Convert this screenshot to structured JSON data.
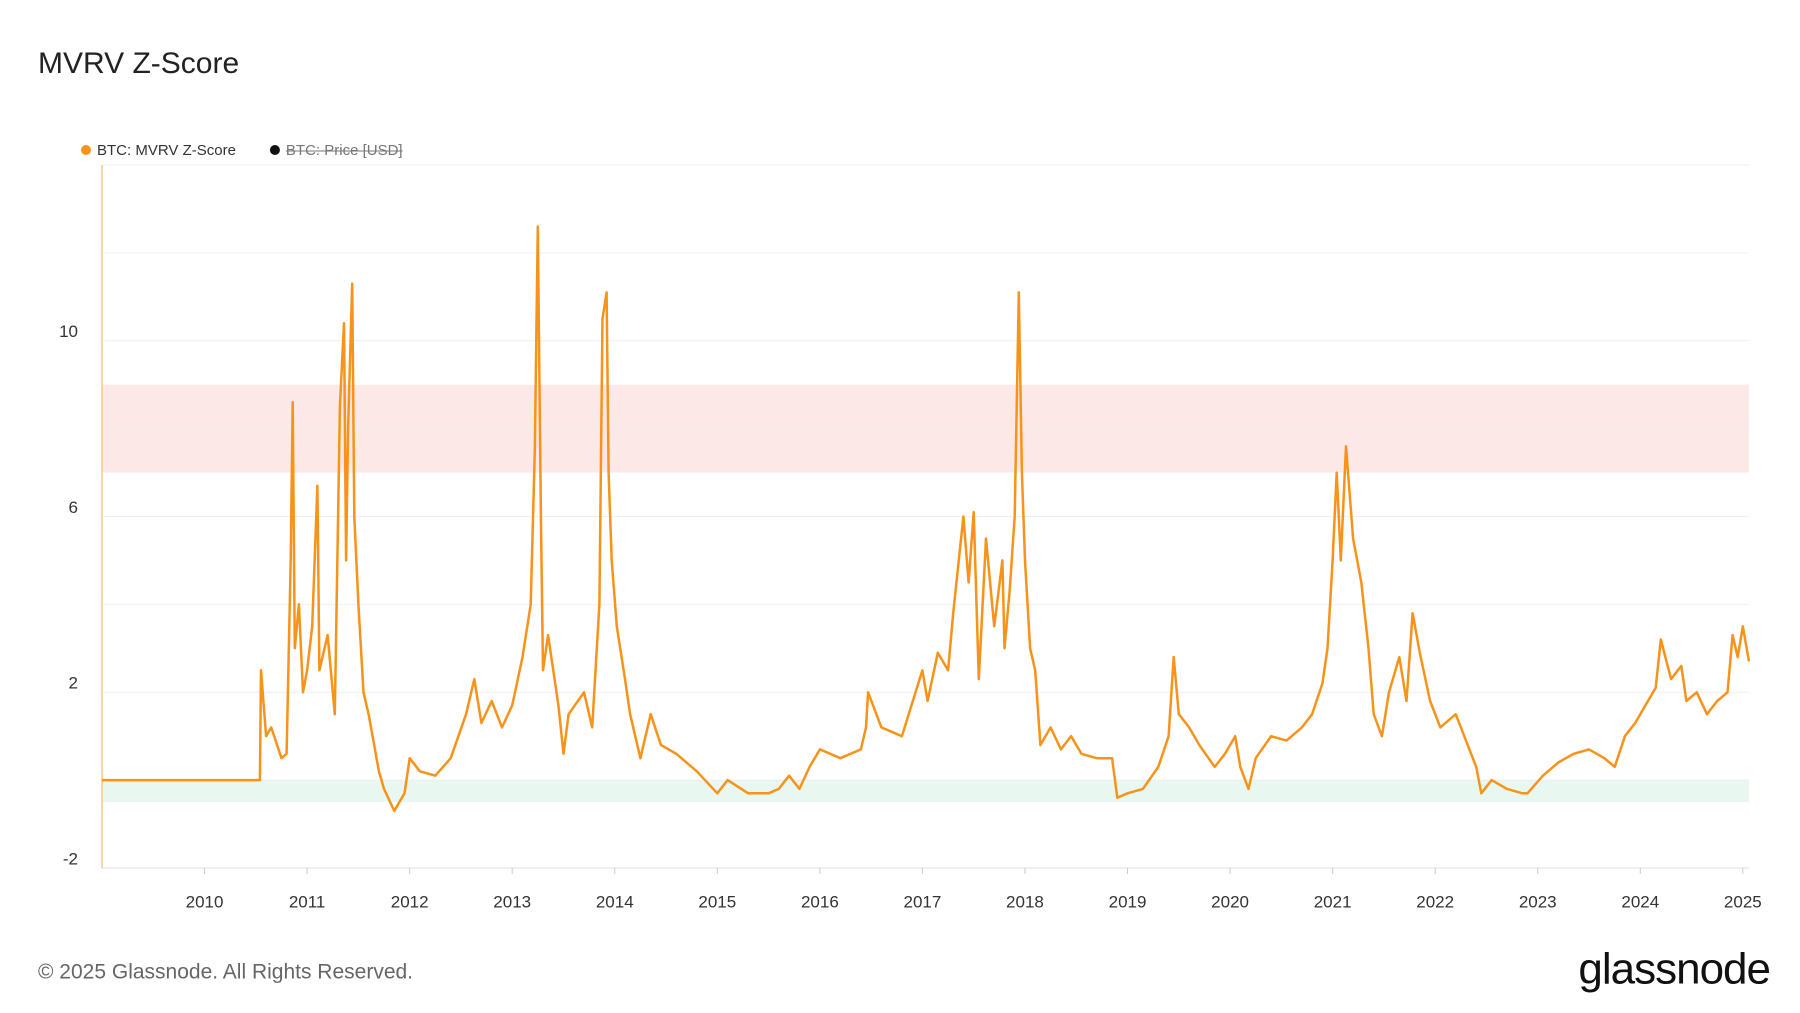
{
  "chart_data": {
    "type": "line",
    "title": "MVRV Z-Score",
    "footer": "© 2025 Glassnode. All Rights Reserved.",
    "brand": "glassnode",
    "x": [
      2009.0,
      2010.54,
      2010.55,
      2010.6,
      2010.65,
      2010.75,
      2010.8,
      2010.84,
      2010.86,
      2010.88,
      2010.92,
      2010.96,
      2011.0,
      2011.05,
      2011.1,
      2011.12,
      2011.2,
      2011.27,
      2011.32,
      2011.36,
      2011.38,
      2011.4,
      2011.44,
      2011.46,
      2011.5,
      2011.55,
      2011.6,
      2011.7,
      2011.75,
      2011.85,
      2011.95,
      2012.0,
      2012.1,
      2012.25,
      2012.4,
      2012.55,
      2012.63,
      2012.7,
      2012.8,
      2012.9,
      2013.0,
      2013.1,
      2013.18,
      2013.22,
      2013.25,
      2013.28,
      2013.3,
      2013.35,
      2013.45,
      2013.5,
      2013.55,
      2013.7,
      2013.78,
      2013.85,
      2013.88,
      2013.92,
      2013.94,
      2013.97,
      2014.02,
      2014.1,
      2014.15,
      2014.25,
      2014.35,
      2014.45,
      2014.6,
      2014.8,
      2015.0,
      2015.1,
      2015.3,
      2015.5,
      2015.6,
      2015.7,
      2015.8,
      2015.9,
      2016.0,
      2016.2,
      2016.4,
      2016.45,
      2016.47,
      2016.6,
      2016.8,
      2017.0,
      2017.05,
      2017.15,
      2017.25,
      2017.3,
      2017.4,
      2017.45,
      2017.5,
      2017.55,
      2017.62,
      2017.7,
      2017.78,
      2017.8,
      2017.85,
      2017.9,
      2017.94,
      2017.97,
      2018.0,
      2018.05,
      2018.1,
      2018.15,
      2018.25,
      2018.35,
      2018.45,
      2018.55,
      2018.7,
      2018.85,
      2018.9,
      2019.0,
      2019.15,
      2019.3,
      2019.4,
      2019.45,
      2019.5,
      2019.6,
      2019.7,
      2019.85,
      2019.95,
      2020.05,
      2020.1,
      2020.18,
      2020.25,
      2020.4,
      2020.55,
      2020.7,
      2020.8,
      2020.9,
      2020.95,
      2021.0,
      2021.04,
      2021.08,
      2021.13,
      2021.2,
      2021.28,
      2021.35,
      2021.4,
      2021.48,
      2021.55,
      2021.65,
      2021.72,
      2021.78,
      2021.85,
      2021.95,
      2022.05,
      2022.2,
      2022.3,
      2022.4,
      2022.45,
      2022.55,
      2022.7,
      2022.85,
      2022.9,
      2023.05,
      2023.2,
      2023.35,
      2023.5,
      2023.65,
      2023.75,
      2023.85,
      2023.95,
      2024.05,
      2024.15,
      2024.2,
      2024.3,
      2024.4,
      2024.45,
      2024.55,
      2024.65,
      2024.75,
      2024.85,
      2024.9,
      2024.95,
      2025.0,
      2025.06
    ],
    "series": [
      {
        "name": "BTC: MVRV Z-Score",
        "color": "#f7931a",
        "values": [
          0,
          0,
          2.5,
          1.0,
          1.2,
          0.5,
          0.6,
          5.0,
          8.6,
          3.0,
          4.0,
          2.0,
          2.5,
          3.5,
          6.7,
          2.5,
          3.3,
          1.5,
          8.5,
          10.4,
          5,
          8,
          11.3,
          6,
          4,
          2,
          1.5,
          0.2,
          -0.2,
          -0.7,
          -0.3,
          0.5,
          0.2,
          0.1,
          0.5,
          1.5,
          2.3,
          1.3,
          1.8,
          1.2,
          1.7,
          2.8,
          4,
          7.5,
          12.6,
          6,
          2.5,
          3.3,
          1.7,
          0.6,
          1.5,
          2,
          1.2,
          4,
          10.5,
          11.1,
          7,
          5,
          3.5,
          2.3,
          1.5,
          0.5,
          1.5,
          0.8,
          0.6,
          0.2,
          -0.3,
          0,
          -0.3,
          -0.3,
          -0.2,
          0.1,
          -0.2,
          0.3,
          0.7,
          0.5,
          0.7,
          1.2,
          2,
          1.2,
          1.0,
          2.5,
          1.8,
          2.9,
          2.5,
          3.8,
          6.0,
          4.5,
          6.1,
          2.3,
          5.5,
          3.5,
          5.0,
          3.0,
          4.3,
          6.0,
          11.1,
          7,
          5,
          3,
          2.5,
          0.8,
          1.2,
          0.7,
          1.0,
          0.6,
          0.5,
          0.5,
          -0.4,
          -0.3,
          -0.2,
          0.3,
          1.0,
          2.8,
          1.5,
          1.2,
          0.8,
          0.3,
          0.6,
          1.0,
          0.3,
          -0.2,
          0.5,
          1.0,
          0.9,
          1.2,
          1.5,
          2.2,
          3.0,
          5.0,
          7.0,
          5,
          7.6,
          5.5,
          4.5,
          3,
          1.5,
          1.0,
          2.0,
          2.8,
          1.8,
          3.8,
          2.9,
          1.8,
          1.2,
          1.5,
          0.9,
          0.3,
          -0.3,
          0,
          -0.2,
          -0.3,
          -0.3,
          0.1,
          0.4,
          0.6,
          0.7,
          0.5,
          0.3,
          1.0,
          1.3,
          1.7,
          2.1,
          3.2,
          2.3,
          2.6,
          1.8,
          2.0,
          1.5,
          1.8,
          2.0,
          3.3,
          2.8,
          3.5,
          2.7
        ]
      }
    ],
    "hidden_series": [
      {
        "name": "BTC: Price [USD]",
        "color": "#111111"
      }
    ],
    "xlim": [
      2009.0,
      2025.06
    ],
    "xticks": [
      2010,
      2011,
      2012,
      2013,
      2014,
      2015,
      2016,
      2017,
      2018,
      2019,
      2020,
      2021,
      2022,
      2023,
      2024,
      2025
    ],
    "ylim": [
      -2,
      14
    ],
    "yticks": [
      -2,
      2,
      6,
      10
    ],
    "minor_gridlines": [
      0,
      4,
      8,
      12,
      14
    ],
    "bands": [
      {
        "range": [
          7,
          9
        ],
        "color": "#fde8e8"
      },
      {
        "range": [
          -0.5,
          0
        ],
        "color": "#e8f7ef"
      }
    ],
    "grid": true
  }
}
